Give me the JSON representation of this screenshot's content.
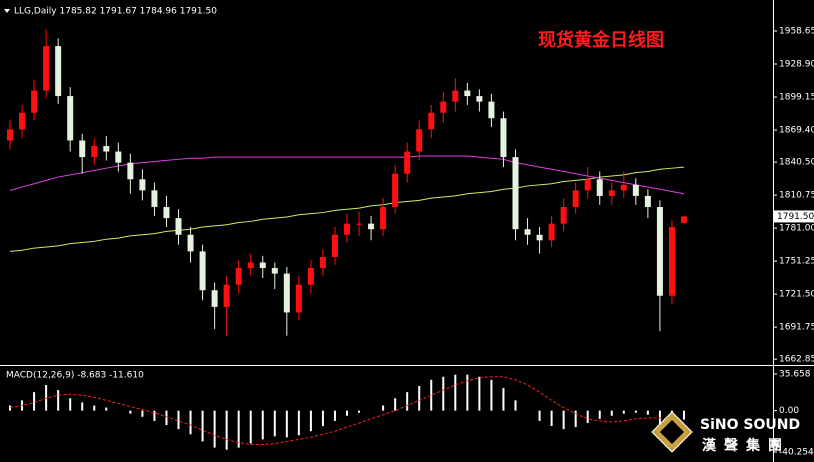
{
  "chart_data": {
    "type": "candlestick",
    "header": "LLG,Daily 1785.82 1791.67 1784.96 1791.50",
    "title": "现货黄金日线图",
    "up_color": "#ff1010",
    "down_color": "#e6f2e0",
    "ylim": [
      1657.6,
      1986.6
    ],
    "yticks": [
      1958.65,
      {
        "value": 1928.9,
        "label": "1928.90"
      },
      1899.15,
      {
        "value": 1869.4,
        "label": "1869.40"
      },
      {
        "value": 1840.5,
        "label": "1840.50"
      },
      1810.75,
      {
        "value": 1781,
        "label": "1781.00"
      },
      1751.25,
      {
        "value": 1721.5,
        "label": "1721.50"
      },
      1691.75,
      1662.85
    ],
    "last": {
      "value": 1791.5,
      "label": "1791.50"
    },
    "candles": [
      [
        1860,
        1878,
        1852,
        1870
      ],
      [
        1870,
        1892,
        1862,
        1885
      ],
      [
        1885,
        1915,
        1878,
        1905
      ],
      [
        1905,
        1960,
        1898,
        1945
      ],
      [
        1945,
        1952,
        1893,
        1900
      ],
      [
        1900,
        1908,
        1850,
        1860
      ],
      [
        1860,
        1866,
        1830,
        1845
      ],
      [
        1845,
        1862,
        1838,
        1855
      ],
      [
        1855,
        1864,
        1842,
        1850
      ],
      [
        1850,
        1858,
        1832,
        1840
      ],
      [
        1840,
        1848,
        1812,
        1825
      ],
      [
        1825,
        1834,
        1806,
        1815
      ],
      [
        1815,
        1822,
        1792,
        1800
      ],
      [
        1800,
        1810,
        1782,
        1790
      ],
      [
        1790,
        1798,
        1766,
        1775
      ],
      [
        1775,
        1782,
        1750,
        1760
      ],
      [
        1760,
        1766,
        1716,
        1725
      ],
      [
        1725,
        1732,
        1690,
        1710
      ],
      [
        1710,
        1738,
        1684,
        1730
      ],
      [
        1730,
        1752,
        1722,
        1745
      ],
      [
        1745,
        1758,
        1738,
        1750
      ],
      [
        1750,
        1756,
        1736,
        1745
      ],
      [
        1745,
        1750,
        1726,
        1740
      ],
      [
        1740,
        1746,
        1684,
        1705
      ],
      [
        1705,
        1738,
        1698,
        1730
      ],
      [
        1730,
        1752,
        1722,
        1745
      ],
      [
        1745,
        1762,
        1738,
        1755
      ],
      [
        1755,
        1782,
        1748,
        1775
      ],
      [
        1775,
        1794,
        1768,
        1785
      ],
      [
        1785,
        1796,
        1774,
        1785
      ],
      [
        1785,
        1792,
        1770,
        1780
      ],
      [
        1780,
        1808,
        1774,
        1800
      ],
      [
        1800,
        1838,
        1794,
        1830
      ],
      [
        1830,
        1858,
        1822,
        1850
      ],
      [
        1850,
        1878,
        1842,
        1870
      ],
      [
        1870,
        1892,
        1862,
        1885
      ],
      [
        1885,
        1904,
        1876,
        1895
      ],
      [
        1895,
        1916,
        1886,
        1905
      ],
      [
        1905,
        1912,
        1892,
        1900
      ],
      [
        1900,
        1906,
        1886,
        1895
      ],
      [
        1895,
        1902,
        1872,
        1880
      ],
      [
        1880,
        1886,
        1836,
        1845
      ],
      [
        1845,
        1852,
        1770,
        1780
      ],
      [
        1780,
        1790,
        1766,
        1775
      ],
      [
        1775,
        1782,
        1758,
        1770
      ],
      [
        1770,
        1792,
        1764,
        1785
      ],
      [
        1785,
        1808,
        1778,
        1800
      ],
      [
        1800,
        1822,
        1794,
        1815
      ],
      [
        1815,
        1836,
        1808,
        1825
      ],
      [
        1825,
        1832,
        1802,
        1810
      ],
      [
        1810,
        1822,
        1802,
        1815
      ],
      [
        1815,
        1832,
        1808,
        1820
      ],
      [
        1820,
        1826,
        1802,
        1810
      ],
      [
        1810,
        1816,
        1790,
        1800
      ],
      [
        1800,
        1806,
        1688,
        1720
      ],
      [
        1720,
        1788,
        1712,
        1782
      ],
      [
        1785.82,
        1791.67,
        1784.96,
        1791.5
      ]
    ],
    "series": [
      {
        "color": "#c8f060",
        "values": [
          1760,
          1761,
          1763,
          1764,
          1765,
          1767,
          1768,
          1769,
          1771,
          1772,
          1774,
          1775,
          1776,
          1778,
          1779,
          1780,
          1782,
          1783,
          1784,
          1786,
          1787,
          1789,
          1790,
          1791,
          1793,
          1794,
          1795,
          1797,
          1798,
          1799,
          1801,
          1802,
          1804,
          1805,
          1806,
          1808,
          1809,
          1810,
          1812,
          1813,
          1814,
          1816,
          1817,
          1819,
          1820,
          1821,
          1823,
          1824,
          1825,
          1827,
          1828,
          1829,
          1831,
          1832,
          1834,
          1835,
          1836
        ]
      },
      {
        "color": "#e040e0",
        "values": [
          1815,
          1818,
          1821,
          1824,
          1827,
          1829,
          1831,
          1833,
          1835,
          1837,
          1839,
          1840,
          1841,
          1842,
          1843,
          1844,
          1844,
          1845,
          1845,
          1845,
          1845,
          1845,
          1845,
          1845,
          1845,
          1845,
          1845,
          1845,
          1845,
          1845,
          1845,
          1845,
          1845,
          1845,
          1846,
          1846,
          1846,
          1846,
          1846,
          1845,
          1844,
          1843,
          1840,
          1838,
          1836,
          1834,
          1832,
          1830,
          1828,
          1826,
          1824,
          1822,
          1820,
          1818,
          1816,
          1814,
          1812
        ]
      }
    ],
    "macd": {
      "label": "MACD(12,26,9) -8.683 -11.610",
      "ylim": [
        -40.254,
        35.658
      ],
      "yticks": [
        35.658,
        {
          "value": 0,
          "label": "0.00"
        },
        -40.254
      ],
      "histogram": [
        5,
        10,
        18,
        25,
        20,
        12,
        8,
        5,
        3,
        0,
        -3,
        -6,
        -10,
        -14,
        -18,
        -23,
        -30,
        -36,
        -38,
        -36,
        -32,
        -28,
        -25,
        -26,
        -24,
        -20,
        -15,
        -10,
        -5,
        -2,
        0,
        5,
        12,
        18,
        24,
        30,
        33,
        35,
        35,
        33,
        30,
        22,
        10,
        0,
        -10,
        -15,
        -18,
        -16,
        -12,
        -8,
        -5,
        -3,
        -2,
        -4,
        -14,
        -14,
        -8.683
      ],
      "signal": [
        3,
        5,
        8,
        12,
        15,
        16,
        15,
        13,
        10,
        7,
        4,
        1,
        -2,
        -6,
        -10,
        -14,
        -19,
        -24,
        -28,
        -31,
        -33,
        -33,
        -32,
        -30,
        -28,
        -26,
        -23,
        -20,
        -16,
        -12,
        -8,
        -4,
        0,
        5,
        10,
        15,
        20,
        25,
        29,
        32,
        33,
        33,
        30,
        25,
        18,
        10,
        3,
        -3,
        -8,
        -10,
        -11,
        -10,
        -8,
        -7,
        -7,
        -10,
        -11.61
      ],
      "histogram_color": "#ffffff",
      "signal_color": "#ff2020"
    },
    "logo": {
      "name": "SiNO SOUND",
      "cn": "漢聲集團"
    }
  }
}
